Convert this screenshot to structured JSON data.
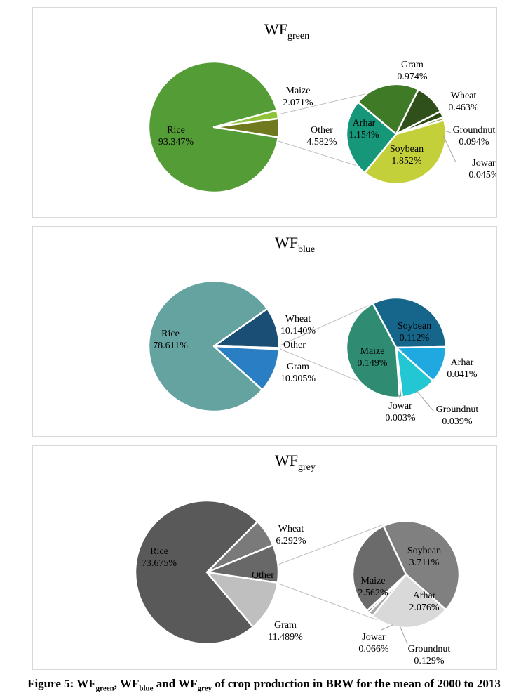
{
  "caption": {
    "text": "Figure 5: WFgreen, WFblue and WFgrey of crop production in BRW for the mean of 2000 to 2013",
    "parts": [
      {
        "t": "Figure 5: WF",
        "sub": false
      },
      {
        "t": "green",
        "sub": true
      },
      {
        "t": ", WF",
        "sub": false
      },
      {
        "t": "blue",
        "sub": true
      },
      {
        "t": " and WF",
        "sub": false
      },
      {
        "t": "grey",
        "sub": true
      },
      {
        "t": " of crop production in BRW for the mean of 2000 to 2013",
        "sub": false
      }
    ]
  },
  "chart_data": [
    {
      "type": "pie",
      "subtype": "pie-of-pie",
      "title": "WFgreen",
      "title_main": "WF",
      "title_sub": "green",
      "primary": [
        {
          "name": "Rice",
          "value": 93.347,
          "label": "93.347%",
          "color": "#539c36"
        },
        {
          "name": "Maize",
          "value": 2.071,
          "label": "2.071%",
          "color": "#8fc43a"
        },
        {
          "name": "Other",
          "value": 4.582,
          "label": "4.582%",
          "color": "#6f7a1e"
        }
      ],
      "secondary": [
        {
          "name": "Gram",
          "value": 0.974,
          "label": "0.974%",
          "color": "#3f7a27"
        },
        {
          "name": "Wheat",
          "value": 0.463,
          "label": "0.463%",
          "color": "#2f4f1b"
        },
        {
          "name": "Groundnut",
          "value": 0.094,
          "label": "0.094%",
          "color": "#2a4a14"
        },
        {
          "name": "Jowar",
          "value": 0.045,
          "label": "0.045%",
          "color": "#8aa34a"
        },
        {
          "name": "Soybean",
          "value": 1.852,
          "label": "1.852%",
          "color": "#c4d03a"
        },
        {
          "name": "Arhar",
          "value": 1.154,
          "label": "1.154%",
          "color": "#16977a"
        }
      ]
    },
    {
      "type": "pie",
      "subtype": "pie-of-pie",
      "title": "WFblue",
      "title_main": "WF",
      "title_sub": "blue",
      "primary": [
        {
          "name": "Rice",
          "value": 78.611,
          "label": "78.611%",
          "color": "#65a3a0"
        },
        {
          "name": "Wheat",
          "value": 10.14,
          "label": "10.140%",
          "color": "#1b4e74"
        },
        {
          "name": "Other",
          "value": 0.344,
          "label": "",
          "color": "#8fc6d8"
        },
        {
          "name": "Gram",
          "value": 10.905,
          "label": "10.905%",
          "color": "#2a7fc4"
        }
      ],
      "secondary": [
        {
          "name": "Soybean",
          "value": 0.112,
          "label": "0.112%",
          "color": "#15668a"
        },
        {
          "name": "Arhar",
          "value": 0.041,
          "label": "0.041%",
          "color": "#1fa9e0"
        },
        {
          "name": "Groundnut",
          "value": 0.039,
          "label": "0.039%",
          "color": "#22c7d3"
        },
        {
          "name": "Jowar",
          "value": 0.003,
          "label": "0.003%",
          "color": "#5aa7a0"
        },
        {
          "name": "Maize",
          "value": 0.149,
          "label": "0.149%",
          "color": "#2f8c72"
        }
      ]
    },
    {
      "type": "pie",
      "subtype": "pie-of-pie",
      "title": "WFgrey",
      "title_main": "WF",
      "title_sub": "grey",
      "primary": [
        {
          "name": "Rice",
          "value": 73.675,
          "label": "73.675%",
          "color": "#595959"
        },
        {
          "name": "Wheat",
          "value": 6.292,
          "label": "6.292%",
          "color": "#7a7a7a"
        },
        {
          "name": "Other",
          "value": 8.544,
          "label": "",
          "color": "#686868"
        },
        {
          "name": "Gram",
          "value": 11.489,
          "label": "11.489%",
          "color": "#bfbfbf"
        }
      ],
      "secondary": [
        {
          "name": "Soybean",
          "value": 3.711,
          "label": "3.711%",
          "color": "#808080"
        },
        {
          "name": "Arhar",
          "value": 2.076,
          "label": "2.076%",
          "color": "#d9d9d9"
        },
        {
          "name": "Groundnut",
          "value": 0.129,
          "label": "0.129%",
          "color": "#a6a6a6"
        },
        {
          "name": "Jowar",
          "value": 0.066,
          "label": "0.066%",
          "color": "#6e6e6e"
        },
        {
          "name": "Maize",
          "value": 2.562,
          "label": "2.562%",
          "color": "#6b6b6b"
        }
      ]
    }
  ]
}
